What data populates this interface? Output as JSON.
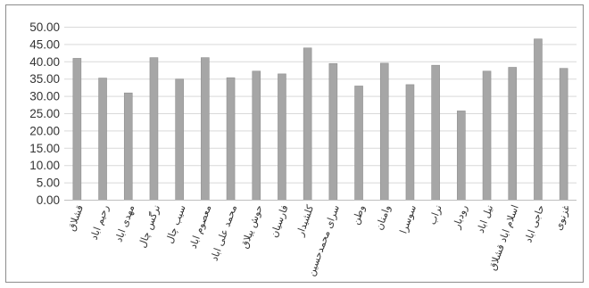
{
  "chart_data": {
    "type": "bar",
    "title": "",
    "xlabel": "",
    "ylabel": "",
    "ylim": [
      0,
      50
    ],
    "ytick_labels": [
      "0.00",
      "5.00",
      "10.00",
      "15.00",
      "20.00",
      "25.00",
      "30.00",
      "35.00",
      "40.00",
      "45.00",
      "50.00"
    ],
    "grid": true,
    "legend": "none",
    "bar_color": "#a6a6a6",
    "grid_color": "#d9d9d9",
    "categories": [
      "قشلاق",
      "رحیم اباد",
      "مهدی اباد",
      "نرگس چال",
      "سیب چال",
      "معصوم اباد",
      "محمد علی اباد",
      "حوش ییلاق",
      "فارسیان",
      "کلشیدار",
      "سرای محمدحسین",
      "وطن",
      "وامنان",
      "سوسرا",
      "نراب",
      "رودبار",
      "نیل اباد",
      "اسلام اباد قشلاق",
      "حاجی اباد",
      "غزنوی"
    ],
    "values": [
      41.0,
      35.3,
      31.0,
      41.2,
      35.0,
      41.2,
      35.4,
      37.3,
      36.5,
      44.0,
      39.5,
      33.0,
      39.6,
      33.4,
      39.0,
      25.8,
      37.3,
      38.4,
      46.6,
      38.1
    ]
  }
}
